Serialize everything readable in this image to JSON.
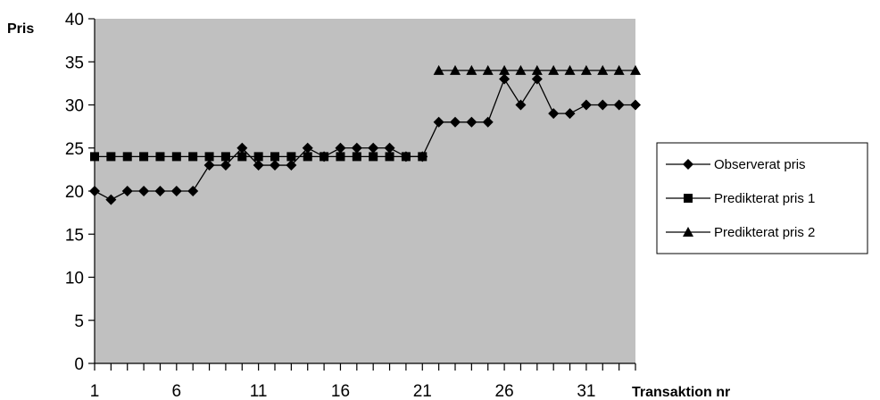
{
  "chart_data": {
    "type": "line",
    "title": "",
    "ylabel": "Pris",
    "xlabel": "Transaktion nr",
    "ylim": [
      0,
      40
    ],
    "yticks": [
      0,
      5,
      10,
      15,
      20,
      25,
      30,
      35,
      40
    ],
    "xlim": [
      1,
      34
    ],
    "xtick_labels": [
      "1",
      "6",
      "11",
      "16",
      "21",
      "26",
      "31"
    ],
    "x": [
      1,
      2,
      3,
      4,
      5,
      6,
      7,
      8,
      9,
      10,
      11,
      12,
      13,
      14,
      15,
      16,
      17,
      18,
      19,
      20,
      21,
      22,
      23,
      24,
      25,
      26,
      27,
      28,
      29,
      30,
      31,
      32,
      33,
      34
    ],
    "grid": false,
    "legend_position": "right",
    "series": [
      {
        "name": "Observerat pris",
        "marker": "diamond",
        "values": [
          20,
          19,
          20,
          20,
          20,
          20,
          20,
          23,
          23,
          25,
          23,
          23,
          23,
          25,
          24,
          25,
          25,
          25,
          25,
          24,
          24,
          28,
          28,
          28,
          28,
          33,
          30,
          33,
          29,
          29,
          30,
          30,
          30,
          30
        ]
      },
      {
        "name": "Predikterat pris 1",
        "marker": "square",
        "values": [
          24,
          24,
          24,
          24,
          24,
          24,
          24,
          24,
          24,
          24,
          24,
          24,
          24,
          24,
          24,
          24,
          24,
          24,
          24,
          24,
          24,
          null,
          null,
          null,
          null,
          null,
          null,
          null,
          null,
          null,
          null,
          null,
          null,
          null
        ]
      },
      {
        "name": "Predikterat pris 2",
        "marker": "triangle",
        "values": [
          null,
          null,
          null,
          null,
          null,
          null,
          null,
          null,
          null,
          null,
          null,
          null,
          null,
          null,
          null,
          null,
          null,
          null,
          null,
          null,
          null,
          34,
          34,
          34,
          34,
          34,
          34,
          34,
          34,
          34,
          34,
          34,
          34,
          34
        ]
      }
    ]
  }
}
